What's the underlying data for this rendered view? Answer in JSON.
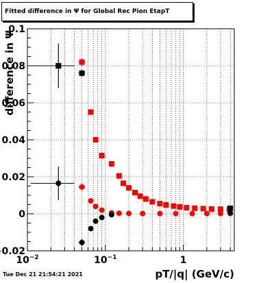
{
  "chart_data": {
    "type": "scatter",
    "title": "Fitted difference in  Ψ  for Global Rec Pion EtapT",
    "xlabel": "pT/|q| (GeV/c)",
    "ylabel": "difference in  Ψ",
    "x_scale": "log",
    "xlim": [
      0.01,
      4.5
    ],
    "ylim": [
      -0.02,
      0.1
    ],
    "grid": true,
    "x_tick_labels": [
      {
        "value": 0.01,
        "label": "10",
        "sup": "−2"
      },
      {
        "value": 0.1,
        "label": "10",
        "sup": "−1"
      },
      {
        "value": 1,
        "label": "1",
        "sup": ""
      }
    ],
    "y_ticks": [
      -0.02,
      0,
      0.02,
      0.04,
      0.06,
      0.08,
      0.1
    ],
    "y_tick_labels": [
      "−0.02",
      "0",
      "0.02",
      "0.04",
      "0.06",
      "0.08",
      "0.1"
    ],
    "series": [
      {
        "color": "#ff0000",
        "points": [
          {
            "x": 0.025,
            "y": 0.0165,
            "xlo": 0.011,
            "xhi": 0.04,
            "yerr": 0.009,
            "marker": "circle"
          },
          {
            "x": 0.025,
            "y": 0.08,
            "xlo": 0.011,
            "xhi": 0.04,
            "yerr": 0.012,
            "marker": "square"
          },
          {
            "x": 0.05,
            "y": 0.082,
            "xlo": 0.045,
            "xhi": 0.055,
            "yerr": 0.002,
            "marker": "square"
          },
          {
            "x": 0.05,
            "y": 0.0145,
            "xlo": 0.045,
            "xhi": 0.055,
            "yerr": 0.002,
            "marker": "circle"
          },
          {
            "x": 0.065,
            "y": 0.055,
            "marker": "square"
          },
          {
            "x": 0.065,
            "y": 0.007,
            "marker": "circle"
          },
          {
            "x": 0.075,
            "y": 0.04,
            "marker": "square"
          },
          {
            "x": 0.075,
            "y": 0.004,
            "marker": "circle"
          },
          {
            "x": 0.09,
            "y": 0.0315,
            "marker": "square"
          },
          {
            "x": 0.09,
            "y": 0.002,
            "marker": "circle"
          },
          {
            "x": 0.12,
            "y": 0.027,
            "marker": "square"
          },
          {
            "x": 0.15,
            "y": 0.0205,
            "marker": "square"
          },
          {
            "x": 0.17,
            "y": 0.0165,
            "marker": "square"
          },
          {
            "x": 0.2,
            "y": 0.014,
            "marker": "square"
          },
          {
            "x": 0.24,
            "y": 0.0115,
            "marker": "square"
          },
          {
            "x": 0.28,
            "y": 0.0095,
            "marker": "square"
          },
          {
            "x": 0.33,
            "y": 0.008,
            "marker": "square"
          },
          {
            "x": 0.4,
            "y": 0.0065,
            "marker": "square"
          },
          {
            "x": 0.5,
            "y": 0.0055,
            "marker": "square"
          },
          {
            "x": 0.6,
            "y": 0.0048,
            "marker": "square"
          },
          {
            "x": 0.75,
            "y": 0.0042,
            "marker": "square"
          },
          {
            "x": 0.9,
            "y": 0.0037,
            "marker": "square"
          },
          {
            "x": 1.1,
            "y": 0.0033,
            "marker": "square"
          },
          {
            "x": 1.4,
            "y": 0.003,
            "marker": "square"
          },
          {
            "x": 1.8,
            "y": 0.0028,
            "marker": "square"
          },
          {
            "x": 2.3,
            "y": 0.0026,
            "marker": "square"
          },
          {
            "x": 3.0,
            "y": 0.0025,
            "marker": "square"
          },
          {
            "x": 3.9,
            "y": 0.0024,
            "marker": "square"
          },
          {
            "x": 0.12,
            "y": 0.0005,
            "marker": "circle"
          },
          {
            "x": 0.15,
            "y": 0.0003,
            "marker": "circle"
          },
          {
            "x": 0.2,
            "y": 0.0002,
            "marker": "circle"
          },
          {
            "x": 0.3,
            "y": 0.0001,
            "marker": "circle"
          },
          {
            "x": 0.5,
            "y": 0.0001,
            "marker": "circle"
          },
          {
            "x": 0.8,
            "y": 0.0001,
            "marker": "circle"
          },
          {
            "x": 1.3,
            "y": 0.0001,
            "marker": "circle"
          },
          {
            "x": 2.0,
            "y": 0.0001,
            "marker": "circle"
          },
          {
            "x": 3.0,
            "y": 0.0001,
            "marker": "circle"
          },
          {
            "x": 4.0,
            "y": 0.0001,
            "marker": "circle"
          }
        ]
      },
      {
        "color": "#000000",
        "points": [
          {
            "x": 0.025,
            "y": 0.08,
            "xlo": 0.011,
            "xhi": 0.04,
            "yerr": 0.012,
            "marker": "square"
          },
          {
            "x": 0.025,
            "y": 0.0165,
            "xlo": 0.011,
            "xhi": 0.04,
            "yerr": 0.009,
            "marker": "circle"
          },
          {
            "x": 0.05,
            "y": 0.076,
            "xlo": 0.045,
            "xhi": 0.055,
            "yerr": 0.002,
            "marker": "square"
          },
          {
            "x": 0.05,
            "y": -0.0155,
            "xlo": 0.045,
            "xhi": 0.055,
            "yerr": 0.002,
            "marker": "circle"
          },
          {
            "x": 0.065,
            "y": -0.008,
            "marker": "circle"
          },
          {
            "x": 0.075,
            "y": -0.004,
            "marker": "circle"
          },
          {
            "x": 0.09,
            "y": -0.002,
            "marker": "circle"
          },
          {
            "x": 0.12,
            "y": -0.0005,
            "marker": "circle"
          },
          {
            "x": 4.0,
            "y": 0.003,
            "marker": "square"
          },
          {
            "x": 4.0,
            "y": 0.0005,
            "marker": "circle"
          }
        ]
      }
    ]
  },
  "footer": {
    "timestamp": "Tue Dec 21 21:54:21 2021"
  }
}
